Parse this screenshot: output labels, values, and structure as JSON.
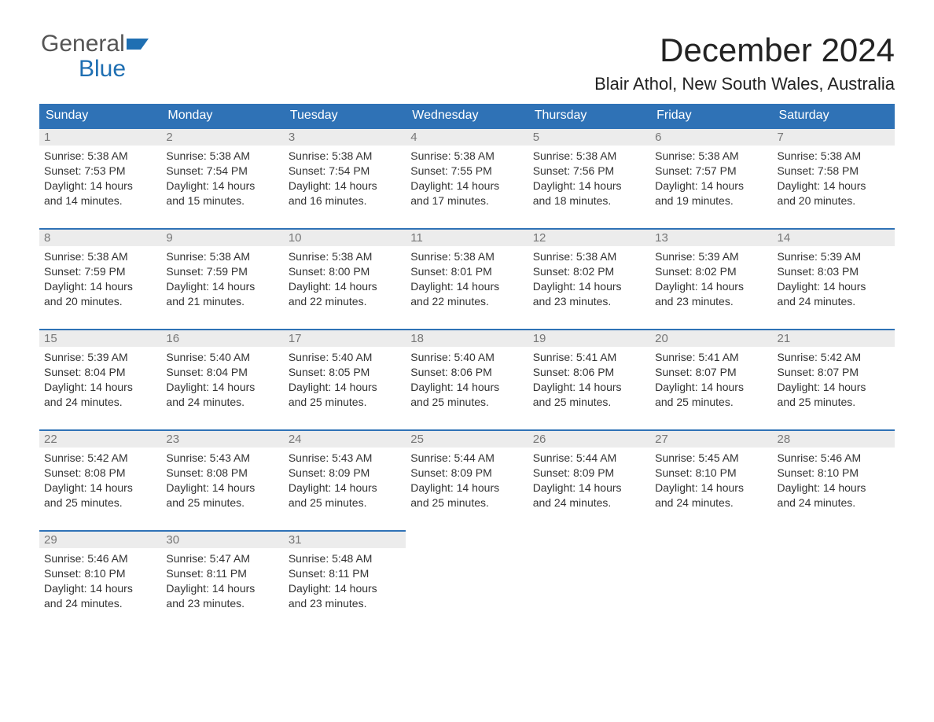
{
  "brand": {
    "line1_a": "General",
    "line2": "Blue"
  },
  "title": {
    "month": "December 2024",
    "location": "Blair Athol, New South Wales, Australia"
  },
  "weekdays": [
    "Sunday",
    "Monday",
    "Tuesday",
    "Wednesday",
    "Thursday",
    "Friday",
    "Saturday"
  ],
  "style": {
    "header_bg": "#2f72b6",
    "header_text": "#ffffff",
    "row_border": "#2f72b6",
    "daynum_bg": "#ececec",
    "daynum_color": "#777777",
    "body_text": "#333333",
    "title_fontsize": 42,
    "location_fontsize": 22,
    "cell_fontsize": 14
  },
  "weeks": [
    [
      {
        "n": "1",
        "sr": "5:38 AM",
        "ss": "7:53 PM",
        "dl": "14 hours and 14 minutes."
      },
      {
        "n": "2",
        "sr": "5:38 AM",
        "ss": "7:54 PM",
        "dl": "14 hours and 15 minutes."
      },
      {
        "n": "3",
        "sr": "5:38 AM",
        "ss": "7:54 PM",
        "dl": "14 hours and 16 minutes."
      },
      {
        "n": "4",
        "sr": "5:38 AM",
        "ss": "7:55 PM",
        "dl": "14 hours and 17 minutes."
      },
      {
        "n": "5",
        "sr": "5:38 AM",
        "ss": "7:56 PM",
        "dl": "14 hours and 18 minutes."
      },
      {
        "n": "6",
        "sr": "5:38 AM",
        "ss": "7:57 PM",
        "dl": "14 hours and 19 minutes."
      },
      {
        "n": "7",
        "sr": "5:38 AM",
        "ss": "7:58 PM",
        "dl": "14 hours and 20 minutes."
      }
    ],
    [
      {
        "n": "8",
        "sr": "5:38 AM",
        "ss": "7:59 PM",
        "dl": "14 hours and 20 minutes."
      },
      {
        "n": "9",
        "sr": "5:38 AM",
        "ss": "7:59 PM",
        "dl": "14 hours and 21 minutes."
      },
      {
        "n": "10",
        "sr": "5:38 AM",
        "ss": "8:00 PM",
        "dl": "14 hours and 22 minutes."
      },
      {
        "n": "11",
        "sr": "5:38 AM",
        "ss": "8:01 PM",
        "dl": "14 hours and 22 minutes."
      },
      {
        "n": "12",
        "sr": "5:38 AM",
        "ss": "8:02 PM",
        "dl": "14 hours and 23 minutes."
      },
      {
        "n": "13",
        "sr": "5:39 AM",
        "ss": "8:02 PM",
        "dl": "14 hours and 23 minutes."
      },
      {
        "n": "14",
        "sr": "5:39 AM",
        "ss": "8:03 PM",
        "dl": "14 hours and 24 minutes."
      }
    ],
    [
      {
        "n": "15",
        "sr": "5:39 AM",
        "ss": "8:04 PM",
        "dl": "14 hours and 24 minutes."
      },
      {
        "n": "16",
        "sr": "5:40 AM",
        "ss": "8:04 PM",
        "dl": "14 hours and 24 minutes."
      },
      {
        "n": "17",
        "sr": "5:40 AM",
        "ss": "8:05 PM",
        "dl": "14 hours and 25 minutes."
      },
      {
        "n": "18",
        "sr": "5:40 AM",
        "ss": "8:06 PM",
        "dl": "14 hours and 25 minutes."
      },
      {
        "n": "19",
        "sr": "5:41 AM",
        "ss": "8:06 PM",
        "dl": "14 hours and 25 minutes."
      },
      {
        "n": "20",
        "sr": "5:41 AM",
        "ss": "8:07 PM",
        "dl": "14 hours and 25 minutes."
      },
      {
        "n": "21",
        "sr": "5:42 AM",
        "ss": "8:07 PM",
        "dl": "14 hours and 25 minutes."
      }
    ],
    [
      {
        "n": "22",
        "sr": "5:42 AM",
        "ss": "8:08 PM",
        "dl": "14 hours and 25 minutes."
      },
      {
        "n": "23",
        "sr": "5:43 AM",
        "ss": "8:08 PM",
        "dl": "14 hours and 25 minutes."
      },
      {
        "n": "24",
        "sr": "5:43 AM",
        "ss": "8:09 PM",
        "dl": "14 hours and 25 minutes."
      },
      {
        "n": "25",
        "sr": "5:44 AM",
        "ss": "8:09 PM",
        "dl": "14 hours and 25 minutes."
      },
      {
        "n": "26",
        "sr": "5:44 AM",
        "ss": "8:09 PM",
        "dl": "14 hours and 24 minutes."
      },
      {
        "n": "27",
        "sr": "5:45 AM",
        "ss": "8:10 PM",
        "dl": "14 hours and 24 minutes."
      },
      {
        "n": "28",
        "sr": "5:46 AM",
        "ss": "8:10 PM",
        "dl": "14 hours and 24 minutes."
      }
    ],
    [
      {
        "n": "29",
        "sr": "5:46 AM",
        "ss": "8:10 PM",
        "dl": "14 hours and 24 minutes."
      },
      {
        "n": "30",
        "sr": "5:47 AM",
        "ss": "8:11 PM",
        "dl": "14 hours and 23 minutes."
      },
      {
        "n": "31",
        "sr": "5:48 AM",
        "ss": "8:11 PM",
        "dl": "14 hours and 23 minutes."
      },
      null,
      null,
      null,
      null
    ]
  ],
  "labels": {
    "sunrise": "Sunrise: ",
    "sunset": "Sunset: ",
    "daylight": "Daylight: "
  }
}
